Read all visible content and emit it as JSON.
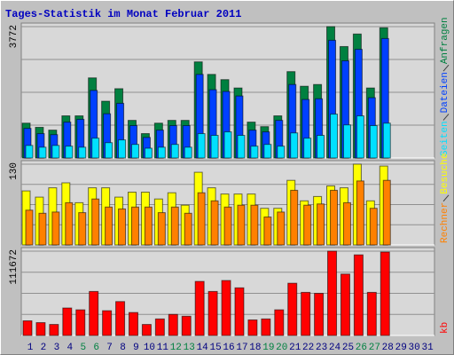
{
  "title": "Tages-Statistik im Monat Februar 2011",
  "chart_data": [
    {
      "type": "bar",
      "ylim": [
        0,
        3772
      ],
      "yticks": [
        3772
      ],
      "grid": true,
      "series": [
        {
          "name": "Anfragen",
          "color": "#008040",
          "values": [
            1000,
            880,
            800,
            1210,
            1210,
            2300,
            1630,
            1990,
            1080,
            700,
            1000,
            1080,
            1080,
            2760,
            2400,
            2250,
            2010,
            1030,
            900,
            1210,
            2480,
            2060,
            2110,
            3772,
            3200,
            3560,
            2010,
            3740,
            null,
            null,
            null
          ]
        },
        {
          "name": "Dateien",
          "color": "#0040ff",
          "values": [
            850,
            700,
            670,
            1030,
            1110,
            1940,
            1270,
            1570,
            930,
            590,
            800,
            930,
            930,
            2400,
            1960,
            1910,
            1780,
            800,
            750,
            1080,
            2110,
            1680,
            1700,
            3380,
            2790,
            3120,
            1730,
            3430,
            null,
            null,
            null
          ]
        },
        {
          "name": "Seiten",
          "color": "#00e0ff",
          "values": [
            360,
            310,
            360,
            340,
            310,
            570,
            440,
            520,
            390,
            280,
            310,
            390,
            310,
            700,
            650,
            750,
            650,
            340,
            390,
            340,
            720,
            570,
            650,
            1260,
            950,
            1210,
            930,
            1000,
            null,
            null,
            null
          ]
        }
      ]
    },
    {
      "type": "bar",
      "ylim": [
        0,
        130
      ],
      "yticks": [
        130
      ],
      "grid": true,
      "series": [
        {
          "name": "Besuche",
          "color": "#ffff00",
          "values": [
            87,
            77,
            92,
            100,
            68,
            92,
            92,
            77,
            85,
            85,
            74,
            84,
            64,
            117,
            92,
            82,
            82,
            82,
            59,
            59,
            104,
            71,
            78,
            95,
            92,
            130,
            71,
            127,
            null,
            null,
            null
          ]
        },
        {
          "name": "Rechner",
          "color": "#ff8000",
          "values": [
            56,
            51,
            53,
            68,
            52,
            74,
            61,
            58,
            61,
            61,
            52,
            61,
            51,
            84,
            71,
            61,
            64,
            64,
            45,
            53,
            88,
            64,
            66,
            88,
            68,
            103,
            59,
            104,
            null,
            null,
            null
          ]
        }
      ]
    },
    {
      "type": "bar",
      "ylim": [
        0,
        111672
      ],
      "yticks": [
        111672
      ],
      "grid": true,
      "categories": [
        "1",
        "2",
        "3",
        "4",
        "5",
        "6",
        "7",
        "8",
        "9",
        "10",
        "11",
        "12",
        "13",
        "14",
        "15",
        "16",
        "17",
        "18",
        "19",
        "20",
        "21",
        "22",
        "23",
        "24",
        "25",
        "26",
        "27",
        "28",
        "29",
        "30",
        "31"
      ],
      "x_label_colors": [
        "#000080",
        "#000080",
        "#000080",
        "#000080",
        "#008040",
        "#008040",
        "#000080",
        "#000080",
        "#000080",
        "#000080",
        "#000080",
        "#008040",
        "#008040",
        "#000080",
        "#000080",
        "#000080",
        "#000080",
        "#000080",
        "#008040",
        "#008040",
        "#000080",
        "#000080",
        "#000080",
        "#000080",
        "#000080",
        "#008040",
        "#008040",
        "#000080",
        "#000080",
        "#000080",
        "#000080"
      ],
      "series": [
        {
          "name": "kb",
          "color": "#ff0000",
          "values": [
            19400,
            17000,
            14600,
            36400,
            34000,
            58300,
            32800,
            44900,
            30400,
            14600,
            21900,
            27900,
            25500,
            71600,
            58300,
            72800,
            63100,
            20600,
            21900,
            34000,
            69200,
            57100,
            55800,
            111672,
            81300,
            106800,
            57100,
            110500,
            null,
            null,
            null
          ]
        }
      ]
    }
  ]
}
